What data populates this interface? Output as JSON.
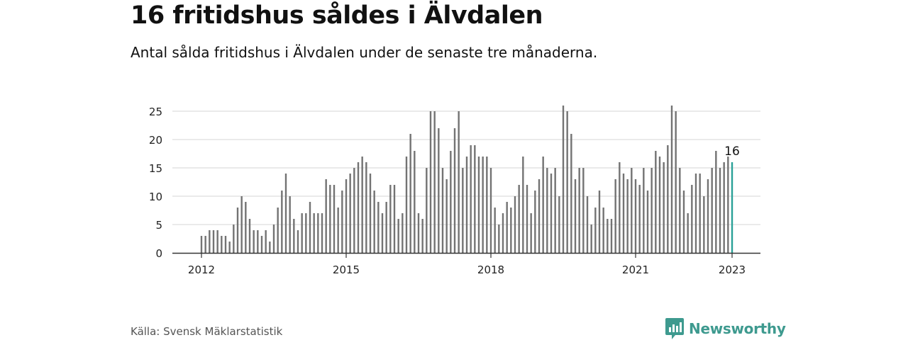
{
  "header": {
    "title": "16 fritidshus såldes i Älvdalen",
    "subtitle": "Antal sålda fritidshus i Älvdalen under de senaste tre månaderna."
  },
  "footer": {
    "source": "Källa: Svensk Mäklarstatistik",
    "brand": "Newsworthy"
  },
  "colors": {
    "bar": "#737373",
    "highlight": "#2aa198",
    "grid": "#d6d6d6",
    "axis": "#333333",
    "brand": "#3e9a8f"
  },
  "icons": {
    "brand_logo": "newsworthy-logo-icon"
  },
  "chart_data": {
    "type": "bar",
    "title": "16 fritidshus såldes i Älvdalen",
    "subtitle": "Antal sålda fritidshus i Älvdalen under de senaste tre månaderna.",
    "xlabel": "",
    "ylabel": "",
    "ylim": [
      0,
      26
    ],
    "yticks": [
      0,
      5,
      10,
      15,
      20,
      25
    ],
    "grid": true,
    "x_start": "2012-01",
    "x_end": "2023-01",
    "xticks": [
      {
        "label": "2012",
        "date": "2012-01"
      },
      {
        "label": "2015",
        "date": "2015-01"
      },
      {
        "label": "2018",
        "date": "2018-01"
      },
      {
        "label": "2021",
        "date": "2021-01"
      },
      {
        "label": "2023",
        "date": "2023-01"
      }
    ],
    "highlight": {
      "date": "2023-01",
      "label": "16"
    },
    "x": [
      "2012-01",
      "2012-02",
      "2012-03",
      "2012-04",
      "2012-05",
      "2012-06",
      "2012-07",
      "2012-08",
      "2012-09",
      "2012-10",
      "2012-11",
      "2012-12",
      "2013-01",
      "2013-02",
      "2013-03",
      "2013-04",
      "2013-05",
      "2013-06",
      "2013-07",
      "2013-08",
      "2013-09",
      "2013-10",
      "2013-11",
      "2013-12",
      "2014-01",
      "2014-02",
      "2014-03",
      "2014-04",
      "2014-05",
      "2014-06",
      "2014-07",
      "2014-08",
      "2014-09",
      "2014-10",
      "2014-11",
      "2014-12",
      "2015-01",
      "2015-02",
      "2015-03",
      "2015-04",
      "2015-05",
      "2015-06",
      "2015-07",
      "2015-08",
      "2015-09",
      "2015-10",
      "2015-11",
      "2015-12",
      "2016-01",
      "2016-02",
      "2016-03",
      "2016-04",
      "2016-05",
      "2016-06",
      "2016-07",
      "2016-08",
      "2016-09",
      "2016-10",
      "2016-11",
      "2016-12",
      "2017-01",
      "2017-02",
      "2017-03",
      "2017-04",
      "2017-05",
      "2017-06",
      "2017-07",
      "2017-08",
      "2017-09",
      "2017-10",
      "2017-11",
      "2017-12",
      "2018-01",
      "2018-02",
      "2018-03",
      "2018-04",
      "2018-05",
      "2018-06",
      "2018-07",
      "2018-08",
      "2018-09",
      "2018-10",
      "2018-11",
      "2018-12",
      "2019-01",
      "2019-02",
      "2019-03",
      "2019-04",
      "2019-05",
      "2019-06",
      "2019-07",
      "2019-08",
      "2019-09",
      "2019-10",
      "2019-11",
      "2019-12",
      "2020-01",
      "2020-02",
      "2020-03",
      "2020-04",
      "2020-05",
      "2020-06",
      "2020-07",
      "2020-08",
      "2020-09",
      "2020-10",
      "2020-11",
      "2020-12",
      "2021-01",
      "2021-02",
      "2021-03",
      "2021-04",
      "2021-05",
      "2021-06",
      "2021-07",
      "2021-08",
      "2021-09",
      "2021-10",
      "2021-11",
      "2021-12",
      "2022-01",
      "2022-02",
      "2022-03",
      "2022-04",
      "2022-05",
      "2022-06",
      "2022-07",
      "2022-08",
      "2022-09",
      "2022-10",
      "2022-11",
      "2022-12",
      "2023-01"
    ],
    "values": [
      3,
      3,
      4,
      4,
      4,
      3,
      3,
      2,
      5,
      8,
      10,
      9,
      6,
      4,
      4,
      3,
      4,
      2,
      5,
      8,
      11,
      14,
      10,
      6,
      4,
      7,
      7,
      9,
      7,
      7,
      7,
      13,
      12,
      12,
      8,
      11,
      13,
      14,
      15,
      16,
      17,
      16,
      14,
      11,
      9,
      7,
      9,
      12,
      12,
      6,
      7,
      17,
      21,
      18,
      7,
      6,
      15,
      25,
      25,
      22,
      15,
      13,
      18,
      22,
      25,
      15,
      17,
      19,
      19,
      17,
      17,
      17,
      15,
      8,
      5,
      7,
      9,
      8,
      10,
      12,
      17,
      12,
      7,
      11,
      13,
      17,
      15,
      14,
      15,
      10,
      26,
      25,
      21,
      13,
      15,
      15,
      10,
      5,
      8,
      11,
      8,
      6,
      6,
      13,
      16,
      14,
      13,
      15,
      13,
      12,
      15,
      11,
      15,
      18,
      17,
      16,
      19,
      26,
      25,
      15,
      11,
      7,
      12,
      14,
      14,
      10,
      13,
      15,
      18,
      15,
      16,
      17,
      16
    ]
  }
}
